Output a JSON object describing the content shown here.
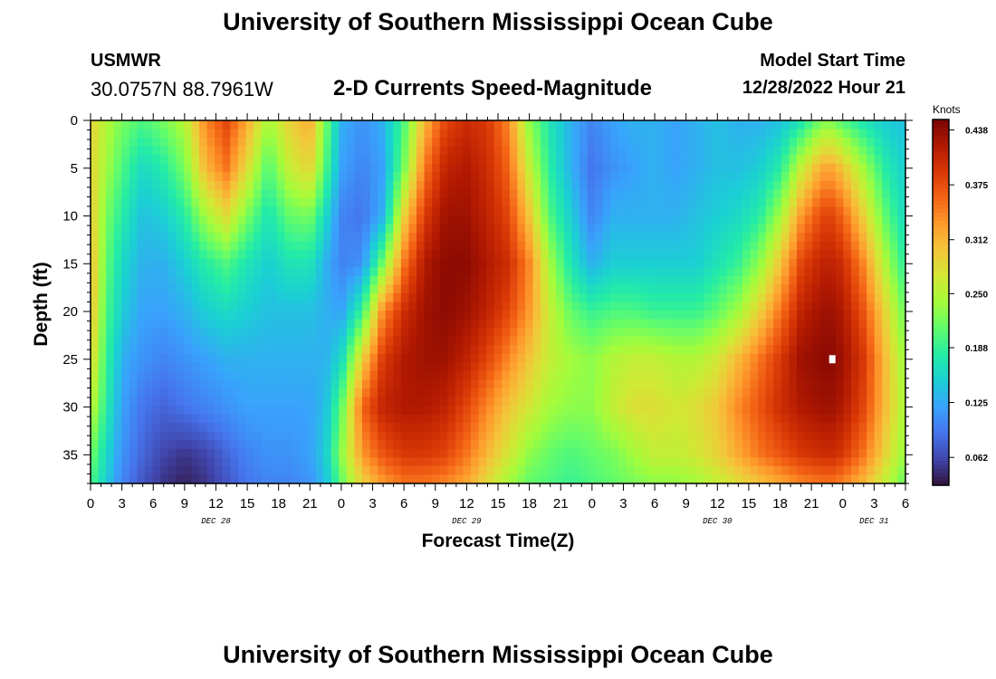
{
  "header": {
    "title": "University of Southern Mississippi Ocean Cube",
    "station": "USMWR",
    "coords": "30.0757N  88.7961W",
    "subtitle": "2-D Currents Speed-Magnitude",
    "start_label": "Model Start Time",
    "start_value": "12/28/2022 Hour 21"
  },
  "footer": {
    "title": "University of Southern Mississippi Ocean Cube"
  },
  "chart_data": {
    "type": "heatmap",
    "title": "2-D Currents Speed-Magnitude",
    "xlabel": "Forecast Time(Z)",
    "ylabel": "Depth (ft)",
    "x_range_hours": [
      0,
      78
    ],
    "x_ticks": [
      "0",
      "3",
      "6",
      "9",
      "12",
      "15",
      "18",
      "21",
      "0",
      "3",
      "6",
      "9",
      "12",
      "15",
      "18",
      "21",
      "0",
      "3",
      "6",
      "9",
      "12",
      "15",
      "18",
      "21",
      "0",
      "3",
      "6"
    ],
    "date_labels": [
      {
        "label": "DEC 28",
        "hour": 12
      },
      {
        "label": "DEC 29",
        "hour": 36
      },
      {
        "label": "DEC 30",
        "hour": 60
      },
      {
        "label": "DEC 31",
        "hour": 75
      }
    ],
    "y_range": [
      0,
      38
    ],
    "y_ticks": [
      0,
      5,
      10,
      15,
      20,
      25,
      30,
      35
    ],
    "y_inverted": true,
    "colorbar": {
      "unit": "Knots",
      "ticks": [
        "0.438",
        "0.375",
        "0.312",
        "0.250",
        "0.188",
        "0.125",
        "0.062"
      ],
      "min": 0.03,
      "max": 0.45,
      "colors": [
        "#30123b",
        "#4145ab",
        "#4675ed",
        "#39a2fc",
        "#1bcfd4",
        "#24eca6",
        "#61fc6c",
        "#a4fc3b",
        "#d1e834",
        "#f3c63a",
        "#fe9b2d",
        "#f36315",
        "#d93806",
        "#b11901",
        "#7a0403"
      ]
    },
    "marker": {
      "hour": 71,
      "depth": 25
    },
    "field": {
      "hours": [
        0,
        1.5,
        3,
        5,
        7,
        9,
        11,
        13,
        15,
        17,
        19,
        21,
        22.5,
        24,
        26,
        28,
        30,
        32,
        34,
        36,
        38,
        40,
        42,
        44,
        46,
        48,
        50,
        52,
        54,
        56,
        58,
        60,
        62,
        64,
        66,
        68,
        70,
        71,
        72,
        74,
        76,
        78
      ],
      "depths": [
        0,
        5,
        10,
        15,
        20,
        25,
        30,
        35,
        38
      ],
      "values": [
        [
          0.29,
          0.25,
          0.22,
          0.2,
          0.22,
          0.25,
          0.34,
          0.38,
          0.32,
          0.24,
          0.29,
          0.32,
          0.22,
          0.13,
          0.11,
          0.13,
          0.2,
          0.31,
          0.38,
          0.4,
          0.39,
          0.34,
          0.23,
          0.17,
          0.13,
          0.1,
          0.12,
          0.13,
          0.13,
          0.12,
          0.13,
          0.14,
          0.13,
          0.13,
          0.14,
          0.17,
          0.22,
          0.22,
          0.2,
          0.17,
          0.15,
          0.14
        ],
        [
          0.29,
          0.24,
          0.2,
          0.16,
          0.18,
          0.22,
          0.31,
          0.35,
          0.28,
          0.2,
          0.26,
          0.29,
          0.2,
          0.12,
          0.1,
          0.12,
          0.22,
          0.35,
          0.41,
          0.42,
          0.4,
          0.36,
          0.26,
          0.18,
          0.13,
          0.09,
          0.11,
          0.12,
          0.13,
          0.12,
          0.13,
          0.14,
          0.14,
          0.15,
          0.18,
          0.26,
          0.32,
          0.32,
          0.3,
          0.24,
          0.18,
          0.15
        ],
        [
          0.3,
          0.22,
          0.18,
          0.14,
          0.15,
          0.18,
          0.24,
          0.28,
          0.22,
          0.17,
          0.21,
          0.22,
          0.16,
          0.1,
          0.09,
          0.13,
          0.29,
          0.39,
          0.43,
          0.43,
          0.41,
          0.38,
          0.3,
          0.2,
          0.15,
          0.1,
          0.13,
          0.13,
          0.13,
          0.13,
          0.14,
          0.15,
          0.16,
          0.18,
          0.24,
          0.33,
          0.38,
          0.38,
          0.36,
          0.29,
          0.21,
          0.16
        ],
        [
          0.31,
          0.21,
          0.16,
          0.13,
          0.13,
          0.15,
          0.18,
          0.2,
          0.17,
          0.15,
          0.17,
          0.17,
          0.13,
          0.1,
          0.11,
          0.22,
          0.35,
          0.42,
          0.44,
          0.44,
          0.42,
          0.4,
          0.34,
          0.24,
          0.17,
          0.13,
          0.15,
          0.15,
          0.15,
          0.15,
          0.15,
          0.17,
          0.19,
          0.23,
          0.3,
          0.38,
          0.41,
          0.41,
          0.4,
          0.34,
          0.25,
          0.18
        ],
        [
          0.31,
          0.2,
          0.15,
          0.12,
          0.12,
          0.13,
          0.15,
          0.16,
          0.15,
          0.14,
          0.14,
          0.14,
          0.13,
          0.12,
          0.19,
          0.34,
          0.4,
          0.43,
          0.44,
          0.43,
          0.41,
          0.38,
          0.33,
          0.26,
          0.21,
          0.19,
          0.2,
          0.2,
          0.19,
          0.19,
          0.19,
          0.21,
          0.24,
          0.29,
          0.35,
          0.41,
          0.43,
          0.43,
          0.42,
          0.37,
          0.29,
          0.21
        ],
        [
          0.29,
          0.19,
          0.13,
          0.11,
          0.1,
          0.11,
          0.12,
          0.13,
          0.13,
          0.13,
          0.13,
          0.13,
          0.13,
          0.16,
          0.29,
          0.39,
          0.42,
          0.43,
          0.43,
          0.41,
          0.38,
          0.34,
          0.3,
          0.26,
          0.24,
          0.23,
          0.25,
          0.26,
          0.26,
          0.25,
          0.25,
          0.27,
          0.31,
          0.35,
          0.39,
          0.43,
          0.44,
          0.44,
          0.43,
          0.39,
          0.31,
          0.23
        ],
        [
          0.26,
          0.18,
          0.12,
          0.09,
          0.08,
          0.09,
          0.1,
          0.11,
          0.12,
          0.12,
          0.12,
          0.12,
          0.14,
          0.21,
          0.36,
          0.41,
          0.42,
          0.42,
          0.41,
          0.38,
          0.34,
          0.3,
          0.27,
          0.24,
          0.23,
          0.23,
          0.26,
          0.28,
          0.28,
          0.27,
          0.28,
          0.3,
          0.34,
          0.37,
          0.4,
          0.42,
          0.43,
          0.43,
          0.42,
          0.38,
          0.31,
          0.24
        ],
        [
          0.22,
          0.16,
          0.11,
          0.08,
          0.06,
          0.05,
          0.06,
          0.08,
          0.1,
          0.11,
          0.11,
          0.12,
          0.15,
          0.23,
          0.33,
          0.37,
          0.39,
          0.39,
          0.38,
          0.35,
          0.31,
          0.27,
          0.23,
          0.21,
          0.2,
          0.21,
          0.22,
          0.24,
          0.26,
          0.26,
          0.27,
          0.29,
          0.32,
          0.35,
          0.37,
          0.39,
          0.4,
          0.4,
          0.39,
          0.35,
          0.29,
          0.23
        ],
        [
          0.2,
          0.15,
          0.1,
          0.07,
          0.05,
          0.04,
          0.05,
          0.07,
          0.09,
          0.1,
          0.1,
          0.11,
          0.14,
          0.21,
          0.29,
          0.33,
          0.35,
          0.35,
          0.34,
          0.32,
          0.28,
          0.24,
          0.21,
          0.2,
          0.19,
          0.2,
          0.21,
          0.22,
          0.23,
          0.23,
          0.24,
          0.26,
          0.28,
          0.3,
          0.32,
          0.34,
          0.35,
          0.35,
          0.34,
          0.31,
          0.26,
          0.21
        ]
      ]
    }
  }
}
